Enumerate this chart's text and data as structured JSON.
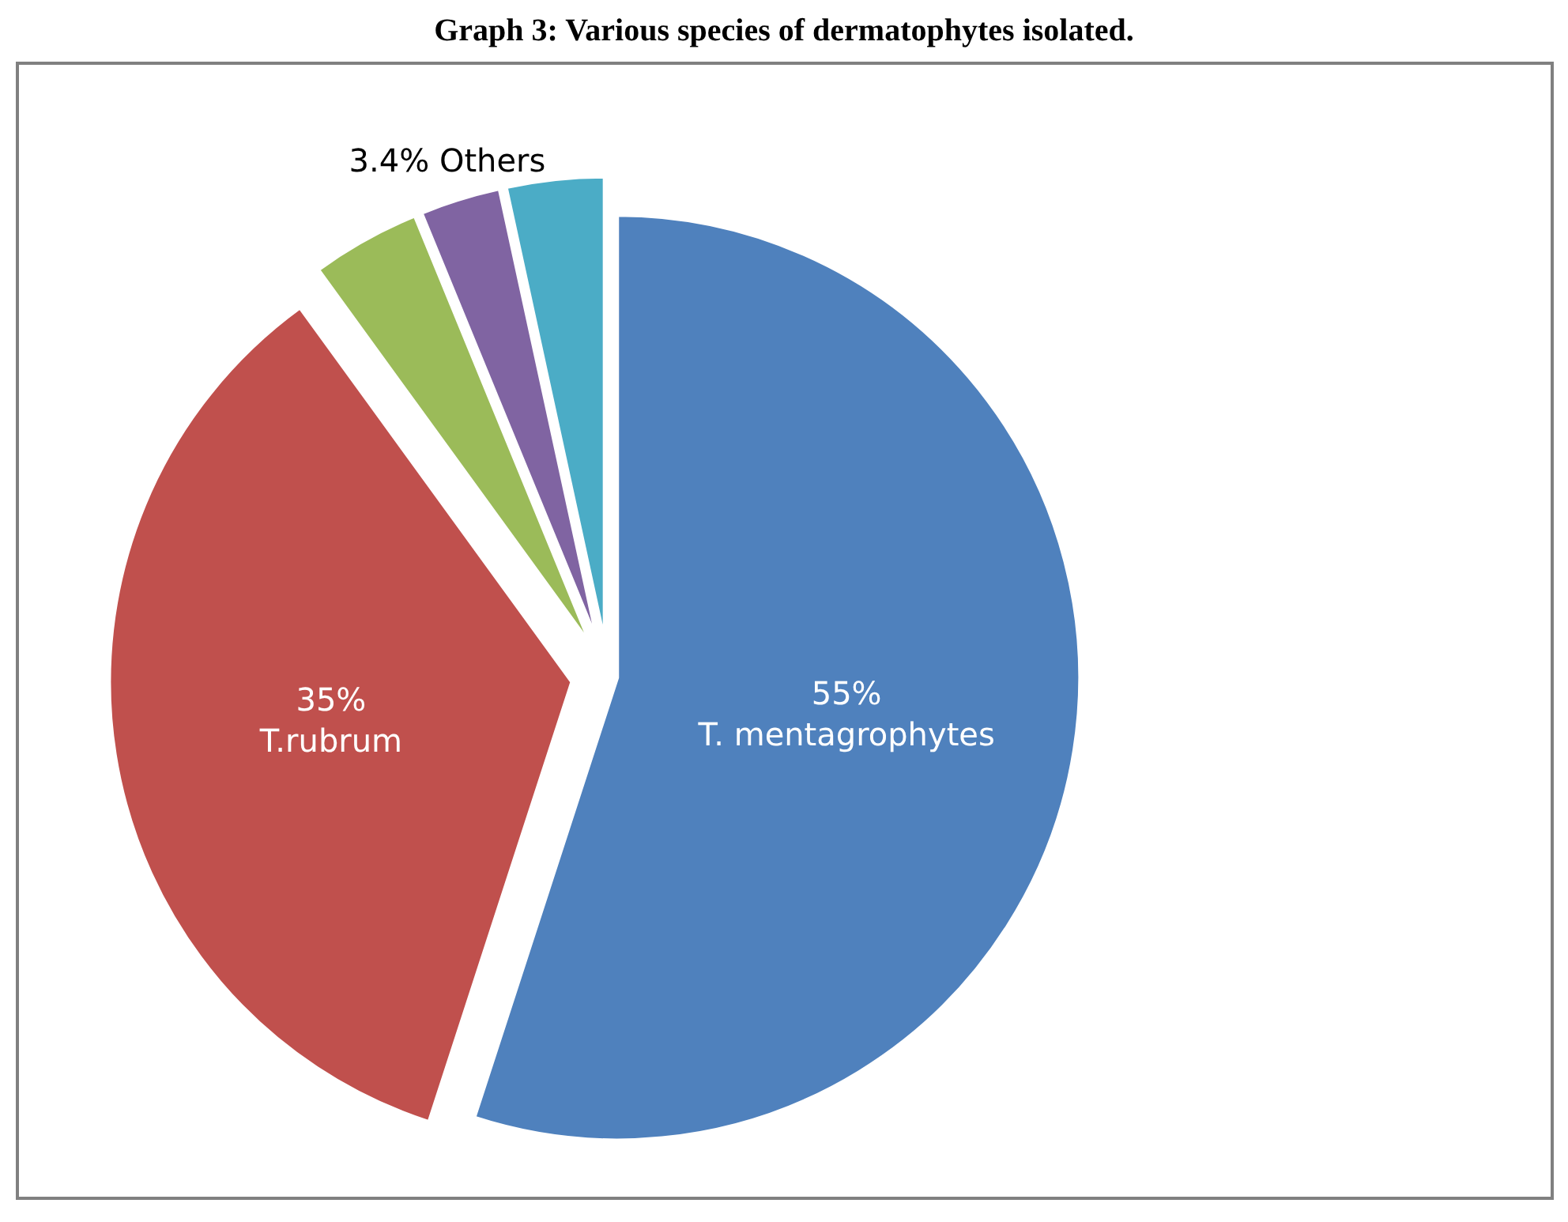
{
  "chart_data": {
    "type": "pie",
    "title": "Graph 3: Various species of dermatophytes isolated.",
    "categories": [
      "T. mentagrophytes",
      "T.rubrum",
      null,
      null,
      "Others"
    ],
    "values": [
      55,
      35,
      3.8,
      2.8,
      3.4
    ],
    "value_labels": [
      "55%",
      "35%",
      null,
      null,
      "3.4%"
    ],
    "colors": [
      "#4f81bd",
      "#c0504d",
      "#9bbb59",
      "#8064a2",
      "#4bacc6"
    ],
    "legend": false
  }
}
